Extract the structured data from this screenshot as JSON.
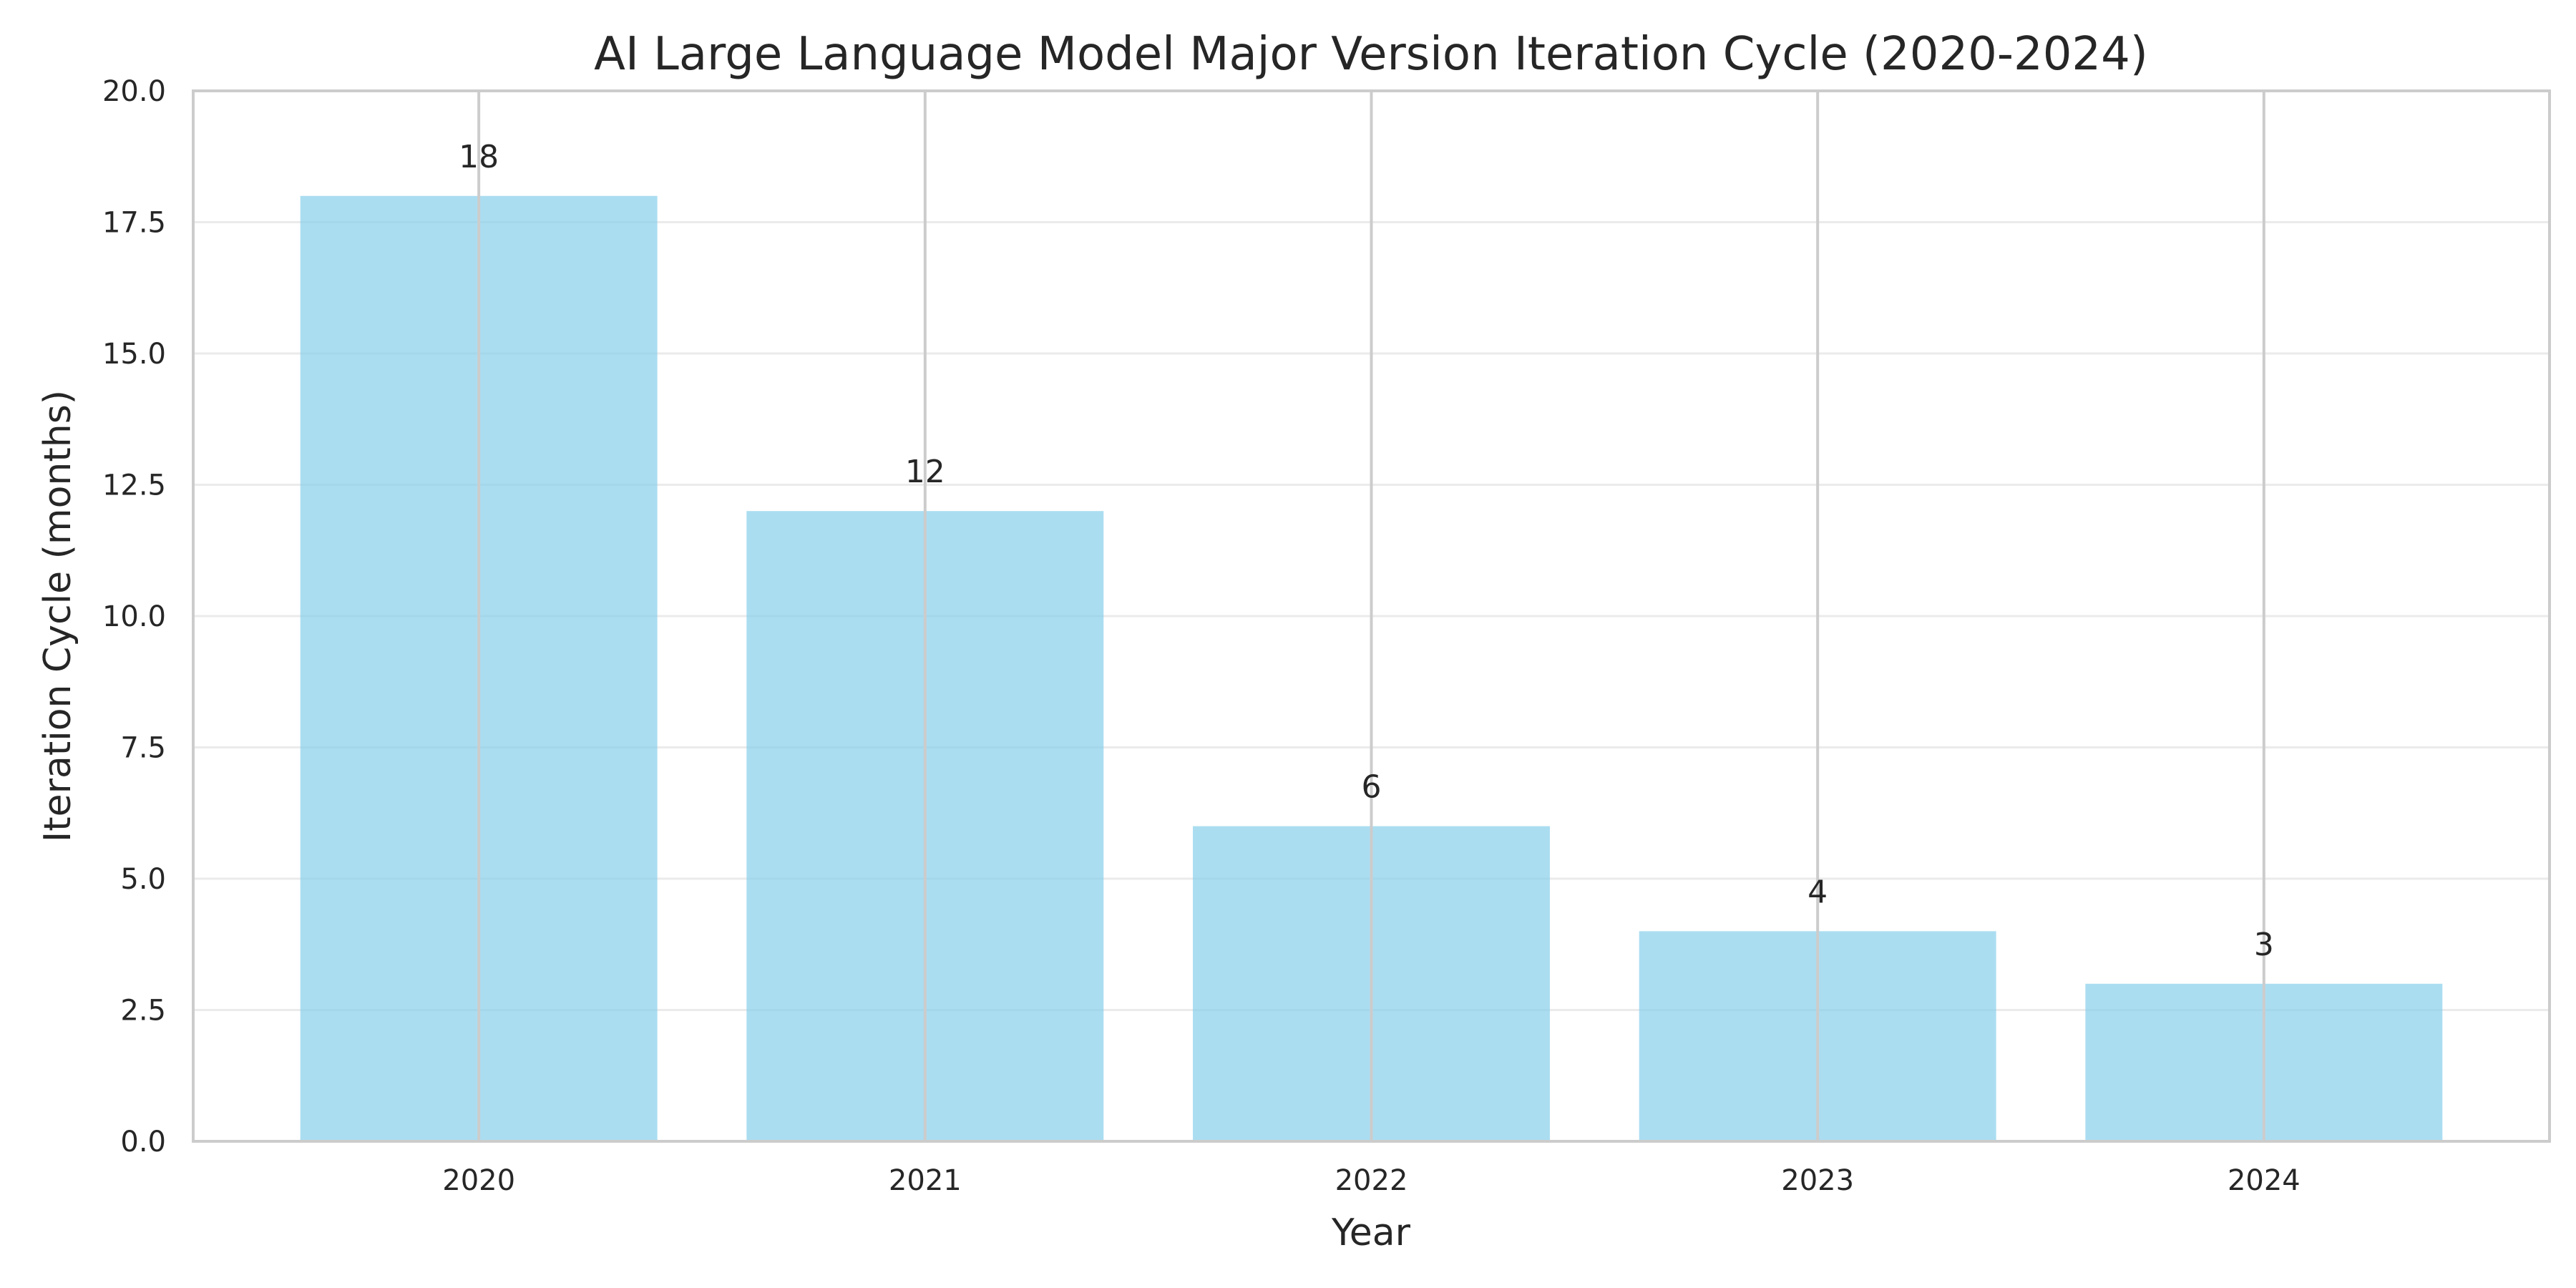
{
  "chart_data": {
    "type": "bar",
    "title": "AI Large Language Model Major Version Iteration Cycle (2020-2024)",
    "xlabel": "Year",
    "ylabel": "Iteration Cycle (months)",
    "categories": [
      "2020",
      "2021",
      "2022",
      "2023",
      "2024"
    ],
    "values": [
      18,
      12,
      6,
      4,
      3
    ],
    "data_labels": [
      "18",
      "12",
      "6",
      "4",
      "3"
    ],
    "ylim": [
      0,
      20
    ],
    "yticks": [
      0,
      2.5,
      5,
      7.5,
      10,
      12.5,
      15,
      17.5,
      20
    ],
    "ytick_labels": [
      "0.0",
      "2.5",
      "5.0",
      "7.5",
      "10.0",
      "12.5",
      "15.0",
      "17.5",
      "20.0"
    ],
    "grid": true,
    "legend": false,
    "bar_color": "#87CEEB"
  }
}
